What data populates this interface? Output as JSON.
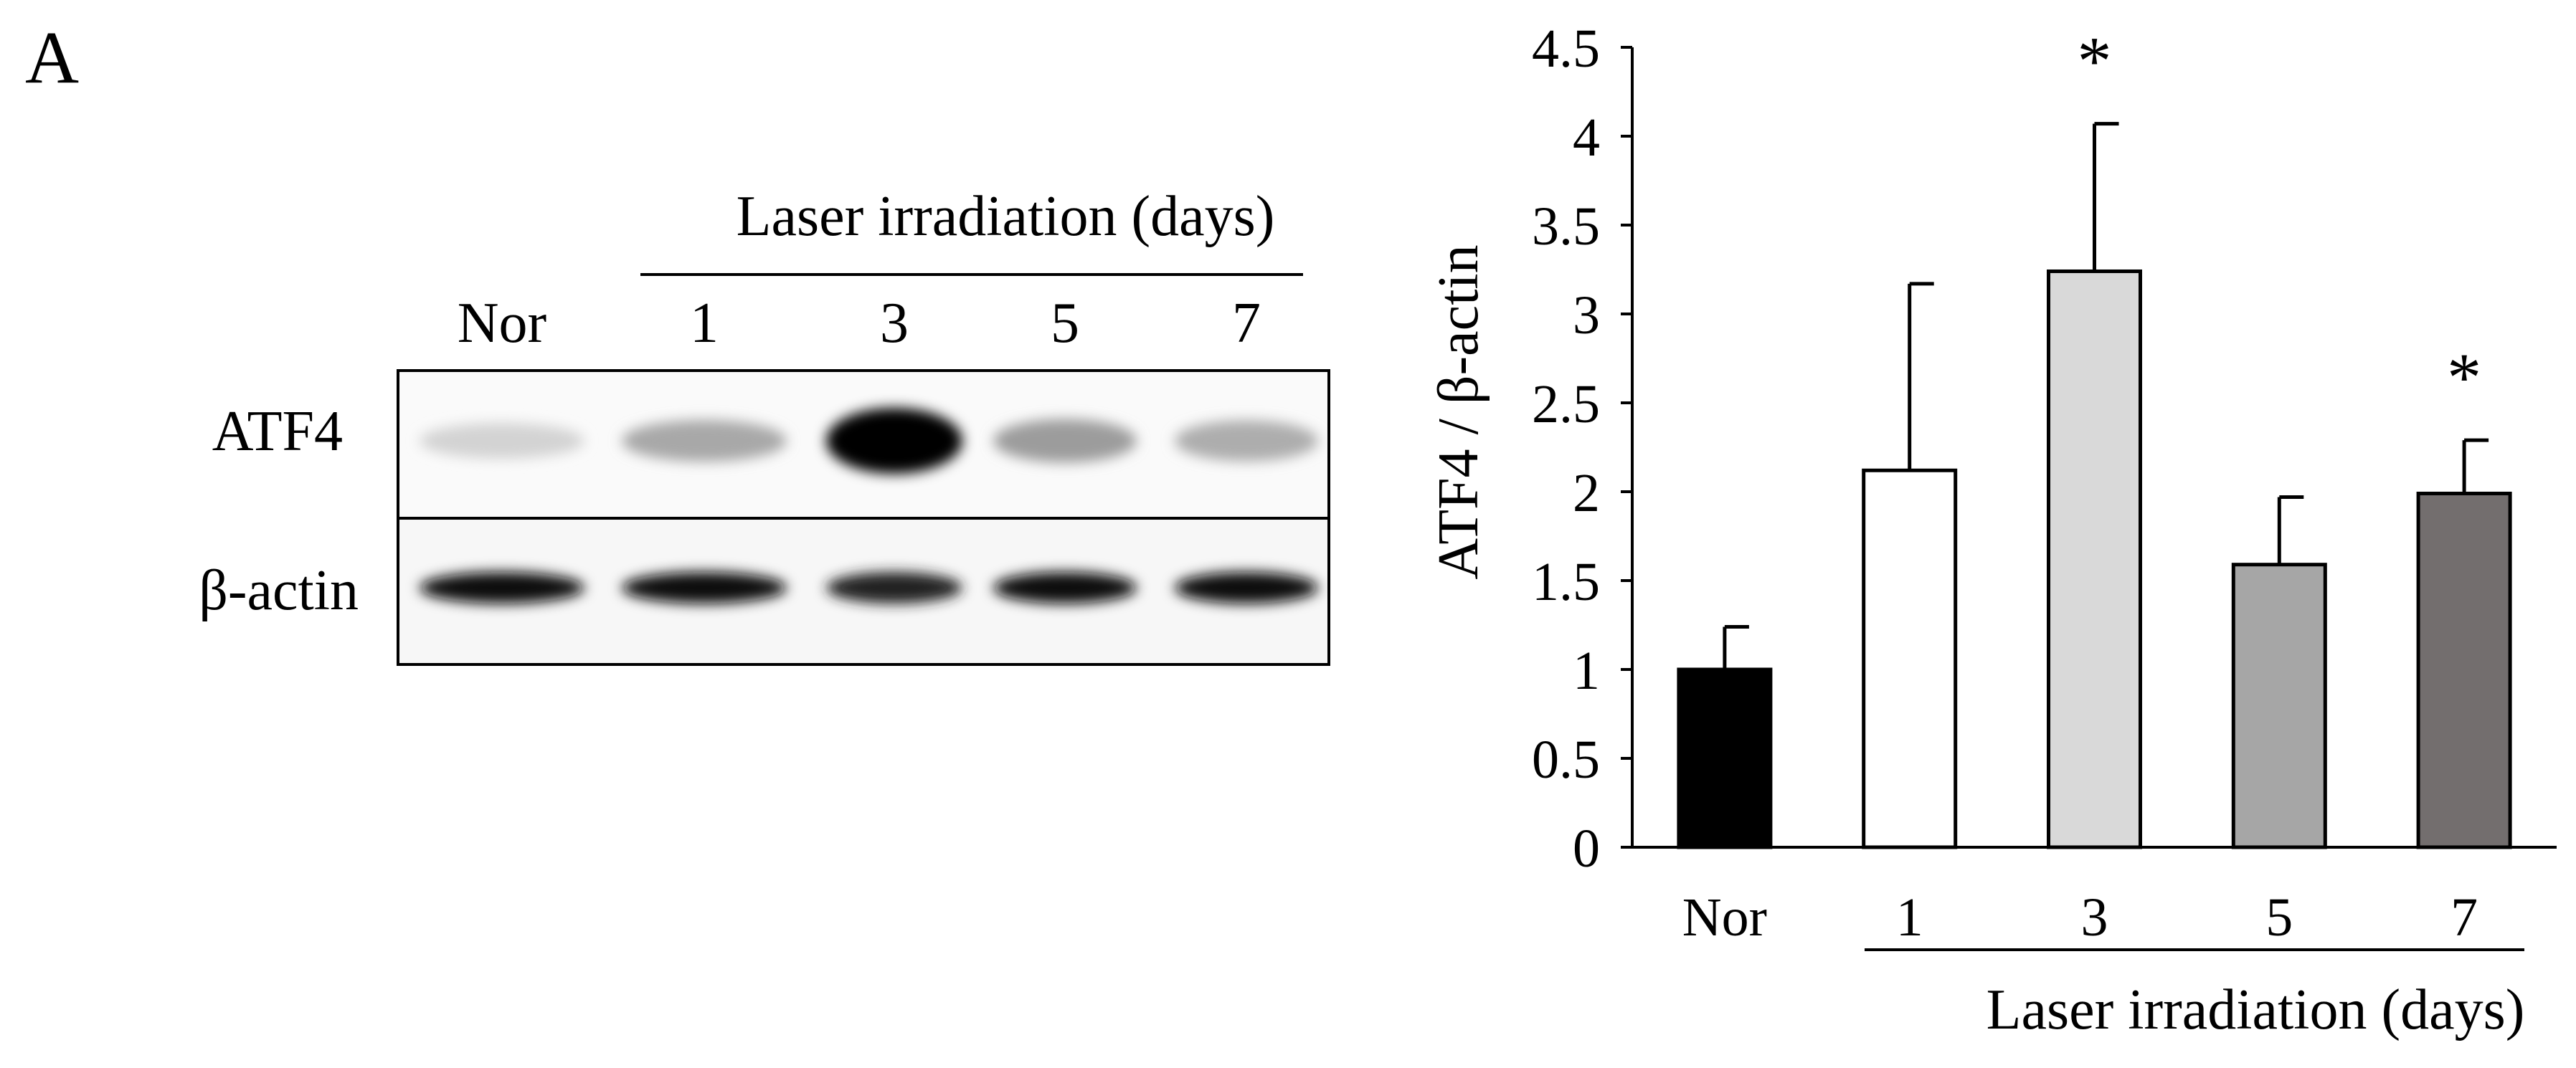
{
  "panel_label": "A",
  "blot": {
    "group_label": "Laser irradiation (days)",
    "lanes": [
      "Nor",
      "1",
      "3",
      "5",
      "7"
    ],
    "rows": [
      {
        "label": "ATF4",
        "band_intensity": [
          0.12,
          0.3,
          1.0,
          0.35,
          0.28
        ]
      },
      {
        "label": "β-actin",
        "band_intensity": [
          0.95,
          0.95,
          0.85,
          0.95,
          0.95
        ]
      }
    ]
  },
  "chart_data": {
    "type": "bar",
    "categories": [
      "Nor",
      "1",
      "3",
      "5",
      "7"
    ],
    "values": [
      1.0,
      2.12,
      3.24,
      1.59,
      1.99
    ],
    "errors": [
      0.24,
      1.05,
      0.83,
      0.38,
      0.3
    ],
    "colors": [
      "#000000",
      "#ffffff",
      "#d9d9d9",
      "#a6a6a6",
      "#736e6e"
    ],
    "significance": [
      "",
      "",
      "*",
      "",
      "*"
    ],
    "ylabel": "ATF4 / β-actin",
    "xlabel": "Laser irradiation (days)",
    "ylim": [
      0,
      4.5
    ],
    "yticks": [
      "0",
      "0.5",
      "1",
      "1.5",
      "2",
      "2.5",
      "3",
      "3.5",
      "4",
      "4.5"
    ],
    "grid": false
  }
}
